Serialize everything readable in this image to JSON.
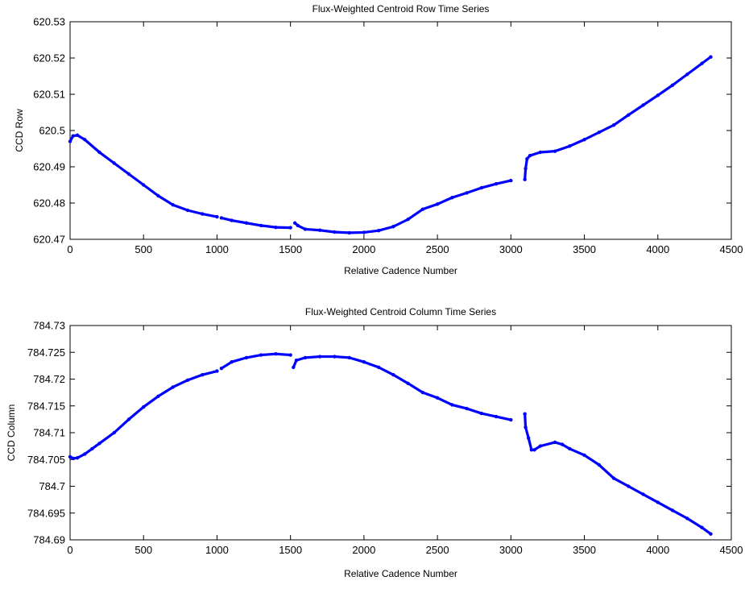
{
  "chart_data": [
    {
      "type": "scatter",
      "title": "Flux-Weighted Centroid Row Time Series",
      "xlabel": "Relative Cadence Number",
      "ylabel": "CCD Row",
      "xlim": [
        0,
        4500
      ],
      "ylim": [
        620.47,
        620.53
      ],
      "xticks": [
        "0",
        "500",
        "1000",
        "1500",
        "2000",
        "2500",
        "3000",
        "3500",
        "4000",
        "4500"
      ],
      "yticks": [
        "620.47",
        "620.48",
        "620.49",
        "620.5",
        "620.51",
        "620.52",
        "620.53"
      ],
      "grid": false,
      "marker_color": "#0000ff",
      "series": [
        {
          "segments": [
            {
              "x": [
                0,
                20,
                50,
                100,
                200,
                300,
                400,
                500,
                600,
                700,
                800,
                900,
                1000
              ],
              "y": [
                620.497,
                620.4985,
                620.4987,
                620.4975,
                620.494,
                620.491,
                620.488,
                620.485,
                620.482,
                620.4795,
                620.478,
                620.477,
                620.4762
              ]
            },
            {
              "x": [
                1030,
                1100,
                1200,
                1300,
                1400,
                1500
              ],
              "y": [
                620.4759,
                620.4752,
                620.4745,
                620.4738,
                620.4733,
                620.4732
              ]
            },
            {
              "x": [
                1530,
                1550,
                1600,
                1700,
                1800,
                1900,
                2000,
                2100,
                2200,
                2300,
                2400,
                2500,
                2600,
                2700,
                2800,
                2900,
                3000
              ],
              "y": [
                620.4745,
                620.4738,
                620.4728,
                620.4725,
                620.472,
                620.4718,
                620.4719,
                620.4724,
                620.4735,
                620.4755,
                620.4783,
                620.4797,
                620.4815,
                620.4828,
                620.4842,
                620.4853,
                620.4862
              ]
            },
            {
              "x": [
                3095,
                3100,
                3110,
                3130,
                3200,
                3300,
                3400,
                3500,
                3600,
                3700,
                3800,
                3900,
                4000,
                4100,
                4200,
                4300,
                4360
              ],
              "y": [
                620.4865,
                620.4895,
                620.4922,
                620.4931,
                620.494,
                620.4943,
                620.4957,
                620.4975,
                620.4995,
                620.5015,
                620.5043,
                620.507,
                620.5097,
                620.5125,
                620.5155,
                620.5185,
                620.5203
              ]
            }
          ]
        }
      ]
    },
    {
      "type": "scatter",
      "title": "Flux-Weighted Centroid Column Time Series",
      "xlabel": "Relative Cadence Number",
      "ylabel": "CCD Column",
      "xlim": [
        0,
        4500
      ],
      "ylim": [
        784.69,
        784.73
      ],
      "xticks": [
        "0",
        "500",
        "1000",
        "1500",
        "2000",
        "2500",
        "3000",
        "3500",
        "4000",
        "4500"
      ],
      "yticks": [
        "784.69",
        "784.695",
        "784.7",
        "784.705",
        "784.71",
        "784.715",
        "784.72",
        "784.725",
        "784.73"
      ],
      "grid": false,
      "marker_color": "#0000ff",
      "series": [
        {
          "segments": [
            {
              "x": [
                0,
                20,
                50,
                100,
                150,
                200,
                300,
                400,
                500,
                600,
                700,
                800,
                900,
                1000
              ],
              "y": [
                784.7055,
                784.7052,
                784.7053,
                784.706,
                784.707,
                784.708,
                784.71,
                784.7125,
                784.7148,
                784.7168,
                784.7185,
                784.7198,
                784.7208,
                784.7215
              ]
            },
            {
              "x": [
                1030,
                1100,
                1200,
                1300,
                1400,
                1500
              ],
              "y": [
                784.722,
                784.7232,
                784.724,
                784.7245,
                784.7247,
                784.7245
              ]
            },
            {
              "x": [
                1520,
                1540,
                1600,
                1700,
                1800,
                1900,
                2000,
                2100,
                2200,
                2300,
                2400,
                2500,
                2600,
                2700,
                2800,
                2900,
                3000
              ],
              "y": [
                784.7222,
                784.7235,
                784.724,
                784.7242,
                784.7242,
                784.724,
                784.7232,
                784.7222,
                784.7208,
                784.7192,
                784.7175,
                784.7165,
                784.7152,
                784.7145,
                784.7136,
                784.713,
                784.7124
              ]
            },
            {
              "x": [
                3095,
                3100,
                3120,
                3140,
                3160,
                3200,
                3300,
                3350,
                3400,
                3500,
                3600,
                3700,
                3800,
                3900,
                4000,
                4100,
                4200,
                4300,
                4360
              ],
              "y": [
                784.7135,
                784.711,
                784.709,
                784.7068,
                784.7068,
                784.7075,
                784.7082,
                784.7078,
                784.707,
                784.7058,
                784.704,
                784.7015,
                784.7,
                784.6985,
                784.697,
                784.6955,
                784.694,
                784.6923,
                784.6911
              ]
            }
          ]
        }
      ]
    }
  ]
}
